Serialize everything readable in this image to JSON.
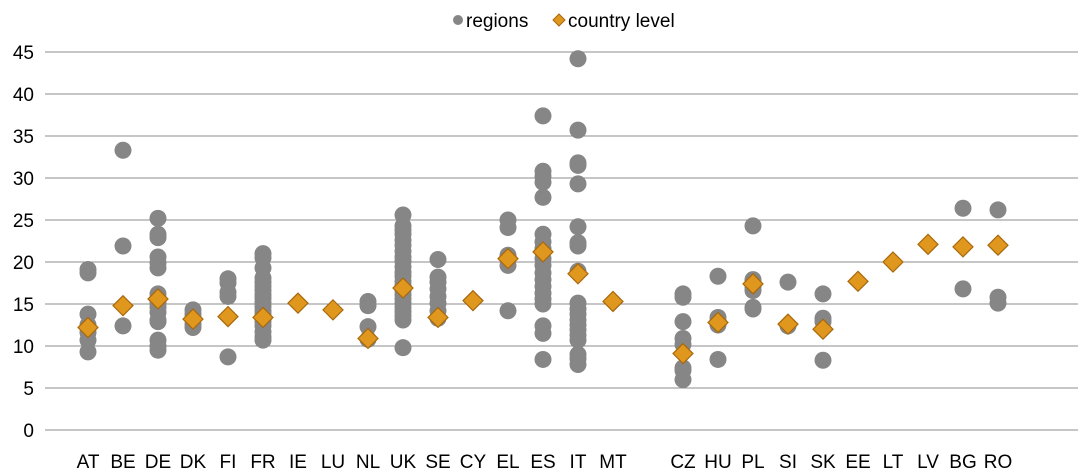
{
  "chart_data": {
    "type": "scatter",
    "categories": [
      "AT",
      "BE",
      "DE",
      "DK",
      "FI",
      "FR",
      "IE",
      "LU",
      "NL",
      "UK",
      "SE",
      "CY",
      "EL",
      "ES",
      "IT",
      "MT",
      "",
      "CZ",
      "HU",
      "PL",
      "SI",
      "SK",
      "EE",
      "LT",
      "LV",
      "BG",
      "RO"
    ],
    "ylim": [
      0,
      45
    ],
    "yticks": [
      0,
      5,
      10,
      15,
      20,
      25,
      30,
      35,
      40,
      45
    ],
    "grid": true,
    "legend": "top-center",
    "gridline_color": "#8C8C8C",
    "series": [
      {
        "name": "regions",
        "marker": "circle",
        "color": "#868686",
        "values": [
          [
            19.1,
            18.7,
            13.8,
            12.5,
            11.6,
            10.7,
            9.3
          ],
          [
            33.3,
            21.9,
            12.4
          ],
          [
            25.2,
            23.3,
            22.9,
            20.6,
            19.9,
            19.3,
            16.2,
            15.7,
            15.1,
            14.6,
            14.0,
            13.1,
            12.9,
            10.7,
            10.0,
            9.5
          ],
          [
            14.3,
            13.8,
            13.3,
            12.6,
            12.2
          ],
          [
            18.0,
            17.5,
            16.4,
            15.9,
            8.7
          ],
          [
            21.0,
            20.5,
            19.3,
            18.1,
            17.6,
            17.1,
            16.6,
            16.1,
            15.7,
            15.2,
            14.7,
            14.2,
            13.8,
            13.3,
            12.9,
            12.4,
            11.7,
            11.1,
            10.7
          ],
          [],
          [],
          [
            15.3,
            14.8,
            12.3,
            10.8
          ],
          [
            25.6,
            24.3,
            23.8,
            23.3,
            22.6,
            22.0,
            21.3,
            20.6,
            20.1,
            19.4,
            18.8,
            18.3,
            17.7,
            17.2,
            16.6,
            16.1,
            15.6,
            15.1,
            14.6,
            14.1,
            13.6,
            13.1,
            9.8
          ],
          [
            20.3,
            18.2,
            17.6,
            16.8,
            15.9,
            15.1,
            14.2,
            13.3
          ],
          [],
          [
            25.0,
            24.1,
            20.8,
            19.6,
            14.2
          ],
          [
            37.4,
            30.8,
            30.2,
            29.5,
            27.7,
            23.3,
            22.4,
            21.6,
            20.4,
            19.6,
            18.7,
            17.9,
            17.1,
            16.3,
            15.6,
            15.0,
            12.4,
            11.5,
            8.4
          ],
          [
            44.2,
            35.7,
            31.8,
            31.5,
            29.3,
            24.2,
            22.3,
            21.9,
            18.9,
            15.1,
            14.4,
            13.8,
            13.1,
            12.5,
            11.9,
            11.3,
            10.7,
            9.0,
            8.5,
            7.8
          ],
          [],
          [],
          [
            16.2,
            15.8,
            12.9,
            10.9,
            10.2,
            7.4,
            7.1,
            6.0
          ],
          [
            18.3,
            13.4,
            13.0,
            12.5,
            8.4
          ],
          [
            24.3,
            17.9,
            17.6,
            17.0,
            16.6,
            14.6,
            14.4
          ],
          [
            17.6,
            12.4
          ],
          [
            16.2,
            13.3,
            12.9,
            8.3
          ],
          [],
          [],
          [],
          [
            26.4,
            16.8
          ],
          [
            26.2,
            15.8,
            15.1
          ]
        ]
      },
      {
        "name": "country level",
        "marker": "diamond",
        "color": "#E0971E",
        "edge_color": "#A8680C",
        "values": [
          12.2,
          14.8,
          15.6,
          13.2,
          13.5,
          13.4,
          15.1,
          14.3,
          10.9,
          16.9,
          13.4,
          15.4,
          20.4,
          21.2,
          18.6,
          15.3,
          null,
          9.1,
          12.8,
          17.4,
          12.6,
          12.0,
          17.7,
          20.0,
          22.1,
          21.8,
          22.0
        ]
      }
    ]
  }
}
